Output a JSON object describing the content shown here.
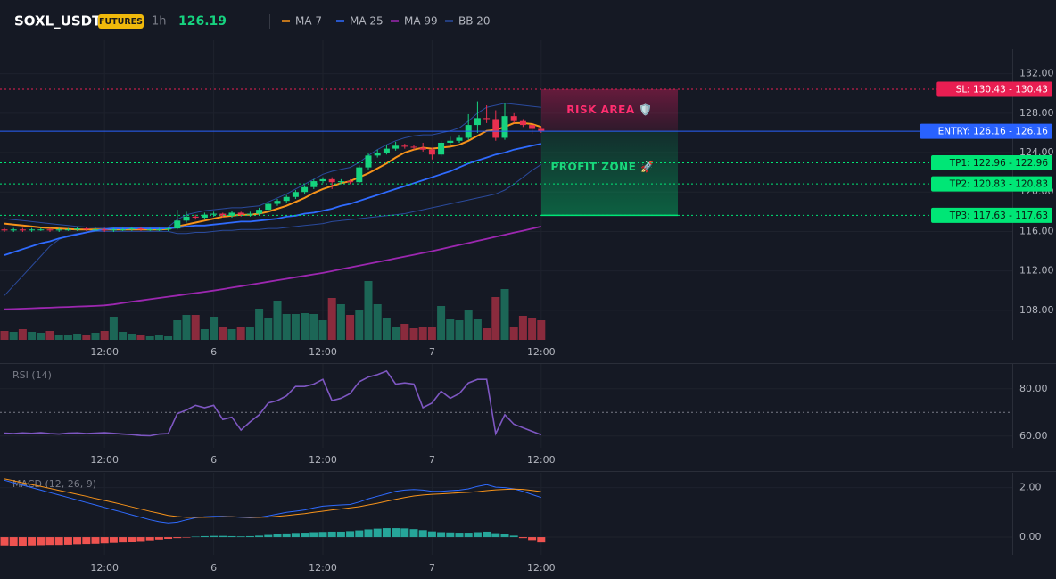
{
  "header": {
    "symbol": "SOXL_USDT",
    "badge": "FUTURES",
    "interval": "1h",
    "price": 126.19
  },
  "chart_data": [
    {
      "type": "candlestick",
      "categories": [
        null,
        null,
        null,
        null,
        null,
        null,
        null,
        null,
        null,
        null,
        null,
        "12:00",
        null,
        null,
        null,
        null,
        null,
        null,
        null,
        null,
        null,
        null,
        null,
        "6",
        null,
        null,
        null,
        null,
        null,
        null,
        null,
        null,
        null,
        null,
        null,
        "12:00",
        null,
        null,
        null,
        null,
        null,
        null,
        null,
        null,
        null,
        null,
        null,
        "7",
        null,
        null,
        null,
        null,
        null,
        null,
        null,
        null,
        null,
        null,
        null,
        "12:00"
      ],
      "open": [
        116.2,
        116.1,
        116.2,
        116.1,
        116.2,
        116.2,
        116.1,
        116.2,
        116.2,
        116.3,
        116.2,
        116.2,
        116.1,
        116.2,
        116.2,
        116.3,
        116.2,
        116.2,
        116.2,
        116.3,
        117.1,
        117.5,
        117.4,
        117.7,
        117.8,
        117.6,
        117.9,
        117.7,
        117.8,
        118.2,
        118.8,
        119.1,
        119.5,
        120.0,
        120.5,
        121.1,
        121.3,
        121.0,
        121.1,
        121.0,
        122.5,
        123.7,
        124.0,
        124.4,
        124.7,
        124.6,
        124.5,
        124.3,
        123.8,
        125.0,
        125.2,
        125.5,
        126.8,
        127.5,
        127.4,
        125.5,
        127.7,
        127.2,
        126.8,
        126.4
      ],
      "high": [
        116.35,
        116.35,
        116.35,
        116.35,
        116.35,
        116.35,
        116.35,
        116.35,
        116.45,
        116.45,
        116.35,
        116.35,
        116.35,
        116.35,
        116.45,
        116.45,
        116.35,
        116.35,
        116.45,
        118.2,
        118.0,
        117.7,
        117.9,
        118.0,
        117.9,
        118.1,
        118.0,
        118.0,
        118.4,
        118.9,
        119.3,
        119.7,
        120.2,
        120.7,
        121.3,
        121.5,
        121.5,
        121.3,
        121.3,
        122.7,
        123.9,
        124.3,
        124.8,
        125.1,
        124.9,
        124.8,
        125.0,
        124.5,
        125.2,
        125.6,
        125.8,
        127.9,
        129.2,
        128.8,
        128.3,
        129.0,
        128.0,
        127.4,
        127.0,
        126.6
      ],
      "low": [
        115.95,
        115.95,
        115.95,
        115.95,
        116.05,
        115.95,
        115.95,
        116.05,
        116.05,
        116.05,
        116.05,
        115.95,
        115.95,
        116.05,
        116.05,
        116.05,
        116.05,
        116.05,
        116.05,
        116.2,
        116.9,
        117.2,
        117.2,
        117.5,
        117.4,
        117.4,
        117.5,
        117.5,
        117.6,
        118.0,
        118.6,
        118.9,
        119.3,
        119.8,
        120.3,
        120.9,
        120.3,
        120.8,
        120.8,
        120.9,
        122.3,
        123.5,
        123.8,
        124.2,
        124.4,
        124.3,
        124.1,
        123.3,
        123.6,
        124.8,
        125.0,
        125.3,
        126.0,
        127.0,
        125.2,
        125.3,
        127.0,
        126.6,
        125.9,
        126.0
      ],
      "close": [
        116.1,
        116.2,
        116.1,
        116.2,
        116.2,
        116.1,
        116.2,
        116.2,
        116.3,
        116.2,
        116.2,
        116.1,
        116.2,
        116.2,
        116.3,
        116.2,
        116.2,
        116.2,
        116.3,
        117.1,
        117.5,
        117.4,
        117.7,
        117.8,
        117.6,
        117.9,
        117.7,
        117.8,
        118.2,
        118.8,
        119.1,
        119.5,
        120.0,
        120.5,
        121.1,
        121.3,
        121.0,
        121.1,
        121.0,
        122.5,
        123.7,
        124.0,
        124.4,
        124.7,
        124.6,
        124.5,
        124.3,
        123.8,
        125.0,
        125.2,
        125.5,
        126.8,
        127.5,
        127.4,
        125.5,
        127.7,
        127.2,
        126.8,
        126.4,
        126.19
      ],
      "up_color": "#16d27f",
      "down_color": "#e8304f",
      "series": [
        {
          "name": "MA 7",
          "color": "#f7931a",
          "values": [
            116.8,
            116.7,
            116.6,
            116.5,
            116.4,
            116.35,
            116.3,
            116.25,
            116.2,
            116.2,
            116.2,
            116.2,
            116.2,
            116.2,
            116.2,
            116.2,
            116.2,
            116.2,
            116.25,
            116.5,
            116.7,
            116.9,
            117.1,
            117.3,
            117.5,
            117.6,
            117.7,
            117.7,
            117.8,
            118.0,
            118.3,
            118.6,
            119.0,
            119.4,
            119.9,
            120.3,
            120.6,
            120.9,
            121.1,
            121.5,
            121.9,
            122.4,
            122.9,
            123.5,
            124.0,
            124.3,
            124.5,
            124.4,
            124.5,
            124.6,
            124.8,
            125.2,
            125.7,
            126.2,
            126.3,
            126.6,
            127.0,
            127.0,
            126.9,
            126.6
          ]
        },
        {
          "name": "MA 25",
          "color": "#2f6bff",
          "values": [
            113.6,
            113.9,
            114.2,
            114.5,
            114.8,
            115.0,
            115.3,
            115.5,
            115.7,
            115.9,
            116.1,
            116.2,
            116.3,
            116.3,
            116.3,
            116.3,
            116.3,
            116.3,
            116.3,
            116.4,
            116.5,
            116.6,
            116.6,
            116.7,
            116.8,
            116.9,
            117.0,
            117.0,
            117.1,
            117.2,
            117.3,
            117.5,
            117.6,
            117.8,
            117.9,
            118.1,
            118.3,
            118.6,
            118.8,
            119.1,
            119.4,
            119.7,
            120.0,
            120.3,
            120.6,
            120.9,
            121.2,
            121.5,
            121.8,
            122.1,
            122.5,
            122.9,
            123.2,
            123.5,
            123.8,
            124.0,
            124.3,
            124.5,
            124.7,
            124.9
          ]
        },
        {
          "name": "MA 99",
          "color": "#9c27b0",
          "values": [
            108.1,
            108.13,
            108.17,
            108.2,
            108.24,
            108.27,
            108.31,
            108.34,
            108.38,
            108.41,
            108.45,
            108.5,
            108.6,
            108.75,
            108.88,
            109.0,
            109.13,
            109.25,
            109.38,
            109.5,
            109.63,
            109.75,
            109.88,
            110.0,
            110.15,
            110.3,
            110.45,
            110.6,
            110.75,
            110.9,
            111.05,
            111.2,
            111.35,
            111.5,
            111.65,
            111.8,
            111.98,
            112.17,
            112.35,
            112.53,
            112.72,
            112.9,
            113.08,
            113.27,
            113.45,
            113.63,
            113.82,
            114.0,
            114.21,
            114.42,
            114.63,
            114.83,
            115.04,
            115.25,
            115.46,
            115.67,
            115.88,
            116.08,
            116.29,
            116.5
          ]
        },
        {
          "name": "BB 20",
          "color": "#2a4a9c",
          "upper": [
            117.3,
            117.2,
            117.1,
            117.0,
            116.9,
            116.8,
            116.7,
            116.6,
            116.5,
            116.45,
            116.4,
            116.4,
            116.4,
            116.4,
            116.4,
            116.4,
            116.4,
            116.4,
            116.45,
            117.2,
            117.7,
            117.9,
            118.1,
            118.2,
            118.3,
            118.4,
            118.4,
            118.5,
            118.6,
            119.0,
            119.4,
            119.8,
            120.3,
            120.8,
            121.3,
            121.8,
            122.1,
            122.3,
            122.5,
            123.0,
            123.7,
            124.3,
            124.8,
            125.2,
            125.5,
            125.7,
            125.8,
            125.8,
            126.0,
            126.2,
            126.5,
            127.2,
            128.0,
            128.6,
            128.8,
            129.0,
            128.9,
            128.8,
            128.7,
            128.6
          ],
          "lower": [
            109.5,
            110.5,
            111.5,
            112.5,
            113.5,
            114.5,
            115.2,
            115.6,
            115.8,
            115.9,
            116.0,
            116.0,
            116.0,
            116.0,
            116.0,
            116.0,
            116.0,
            116.0,
            116.0,
            115.8,
            115.8,
            115.9,
            115.9,
            116.0,
            116.1,
            116.1,
            116.2,
            116.2,
            116.2,
            116.3,
            116.3,
            116.4,
            116.5,
            116.6,
            116.7,
            116.8,
            117.0,
            117.1,
            117.2,
            117.3,
            117.4,
            117.5,
            117.6,
            117.7,
            117.8,
            118.0,
            118.2,
            118.4,
            118.6,
            118.8,
            119.0,
            119.2,
            119.4,
            119.6,
            119.8,
            120.2,
            120.8,
            121.5,
            122.2,
            122.8
          ]
        }
      ],
      "volume": {
        "values": [
          10,
          9,
          12,
          9,
          8,
          10,
          6,
          6,
          7,
          5,
          8,
          10,
          26,
          9,
          7,
          5,
          4,
          5,
          4,
          22,
          28,
          28,
          12,
          26,
          14,
          12,
          14,
          14,
          35,
          24,
          44,
          29,
          29,
          30,
          29,
          22,
          47,
          40,
          28,
          33,
          66,
          40,
          25,
          14,
          18,
          13,
          14,
          15,
          38,
          23,
          22,
          34,
          23,
          13,
          48,
          57,
          14,
          27,
          25,
          22
        ],
        "ylim": [
          0,
          100
        ],
        "up_color": "#1c6656",
        "down_color": "#8a2b3d"
      },
      "levels": [
        {
          "label": "SL: 130.43 - 130.43",
          "value": 130.43,
          "color": "#e91e52",
          "text_color": "#ffffff",
          "style": "dotted"
        },
        {
          "label": "ENTRY: 126.16 - 126.16",
          "value": 126.16,
          "color": "#2962ff",
          "text_color": "#ffffff",
          "style": "solid"
        },
        {
          "label": "TP1: 122.96 - 122.96",
          "value": 122.96,
          "color": "#00e676",
          "text_color": "#0b1a12",
          "style": "dotted"
        },
        {
          "label": "TP2: 120.83 - 120.83",
          "value": 120.83,
          "color": "#00e676",
          "text_color": "#0b1a12",
          "style": "dotted"
        },
        {
          "label": "TP3: 117.63 - 117.63",
          "value": 117.63,
          "color": "#00e676",
          "text_color": "#0b1a12",
          "style": "dotted"
        }
      ],
      "annotations": [
        "RISK AREA 🛡️",
        "PROFIT ZONE 🚀"
      ],
      "ylim": [
        105,
        134.5
      ],
      "yticks": [
        {
          "value": 108,
          "label": "108.00"
        },
        {
          "value": 112,
          "label": "112.00"
        },
        {
          "value": 116,
          "label": "116.00"
        },
        {
          "value": 120,
          "label": "120.00"
        },
        {
          "value": 124,
          "label": "124.00"
        },
        {
          "value": 128,
          "label": "128.00"
        },
        {
          "value": 132,
          "label": "132.00"
        }
      ],
      "grid": true
    },
    {
      "type": "line",
      "title": "RSI (14)",
      "color": "#7e57c2",
      "values": [
        61.2,
        61.0,
        61.3,
        61.1,
        61.4,
        61.0,
        60.8,
        61.2,
        61.3,
        61.0,
        61.2,
        61.4,
        61.1,
        60.8,
        60.6,
        60.2,
        60.1,
        60.8,
        61.0,
        69.5,
        71,
        73,
        72,
        73,
        67,
        68,
        62.5,
        66,
        69,
        74,
        75,
        77,
        81,
        81,
        82,
        84,
        75,
        76,
        78,
        83,
        85,
        86,
        87.5,
        82,
        82.5,
        82,
        72,
        74,
        79,
        76,
        78,
        82.5,
        84,
        84,
        61,
        69,
        65,
        63.5,
        62,
        60.5
      ],
      "hline": 70,
      "ylim": [
        55,
        90.5
      ],
      "yticks": [
        {
          "value": 60,
          "label": "60.00"
        },
        {
          "value": 80,
          "label": "80.00"
        }
      ],
      "grid": true
    },
    {
      "type": "macd",
      "title": "MACD (12, 26, 9)",
      "series": [
        {
          "color": "#2f6bff",
          "values": [
            2.3,
            2.2,
            2.1,
            2.0,
            1.9,
            1.8,
            1.7,
            1.6,
            1.5,
            1.4,
            1.3,
            1.2,
            1.1,
            1.0,
            0.9,
            0.8,
            0.7,
            0.62,
            0.57,
            0.6,
            0.7,
            0.78,
            0.82,
            0.84,
            0.84,
            0.82,
            0.8,
            0.78,
            0.8,
            0.86,
            0.93,
            1.0,
            1.05,
            1.1,
            1.18,
            1.25,
            1.28,
            1.3,
            1.32,
            1.42,
            1.55,
            1.65,
            1.75,
            1.85,
            1.9,
            1.92,
            1.9,
            1.85,
            1.85,
            1.88,
            1.9,
            1.95,
            2.05,
            2.12,
            2.02,
            2.0,
            1.95,
            1.85,
            1.72,
            1.6
          ]
        },
        {
          "color": "#f7931a",
          "values": [
            2.35,
            2.28,
            2.2,
            2.12,
            2.05,
            1.97,
            1.89,
            1.81,
            1.73,
            1.65,
            1.56,
            1.48,
            1.4,
            1.31,
            1.22,
            1.13,
            1.04,
            0.96,
            0.88,
            0.83,
            0.8,
            0.8,
            0.8,
            0.81,
            0.82,
            0.82,
            0.81,
            0.8,
            0.8,
            0.81,
            0.84,
            0.87,
            0.91,
            0.95,
            1.0,
            1.05,
            1.1,
            1.14,
            1.18,
            1.23,
            1.3,
            1.37,
            1.45,
            1.53,
            1.6,
            1.66,
            1.7,
            1.73,
            1.75,
            1.77,
            1.79,
            1.81,
            1.84,
            1.88,
            1.91,
            1.93,
            1.94,
            1.93,
            1.89,
            1.84
          ]
        }
      ],
      "histogram": {
        "values": [
          -0.35,
          -0.36,
          -0.36,
          -0.35,
          -0.34,
          -0.33,
          -0.33,
          -0.32,
          -0.3,
          -0.29,
          -0.28,
          -0.26,
          -0.24,
          -0.22,
          -0.19,
          -0.16,
          -0.13,
          -0.1,
          -0.07,
          -0.04,
          -0.02,
          0.02,
          0.04,
          0.05,
          0.05,
          0.04,
          0.03,
          0.04,
          0.06,
          0.09,
          0.12,
          0.15,
          0.17,
          0.18,
          0.2,
          0.21,
          0.22,
          0.22,
          0.24,
          0.27,
          0.31,
          0.34,
          0.36,
          0.36,
          0.35,
          0.32,
          0.28,
          0.23,
          0.2,
          0.19,
          0.18,
          0.18,
          0.2,
          0.22,
          0.16,
          0.12,
          0.06,
          -0.04,
          -0.12,
          -0.22
        ],
        "pos_color": "#26a69a",
        "neg_color": "#ef5350"
      },
      "ylim": [
        -0.72,
        2.6
      ],
      "yticks": [
        {
          "value": 0,
          "label": "0.00"
        },
        {
          "value": 2,
          "label": "2.00"
        }
      ],
      "grid": true
    }
  ]
}
